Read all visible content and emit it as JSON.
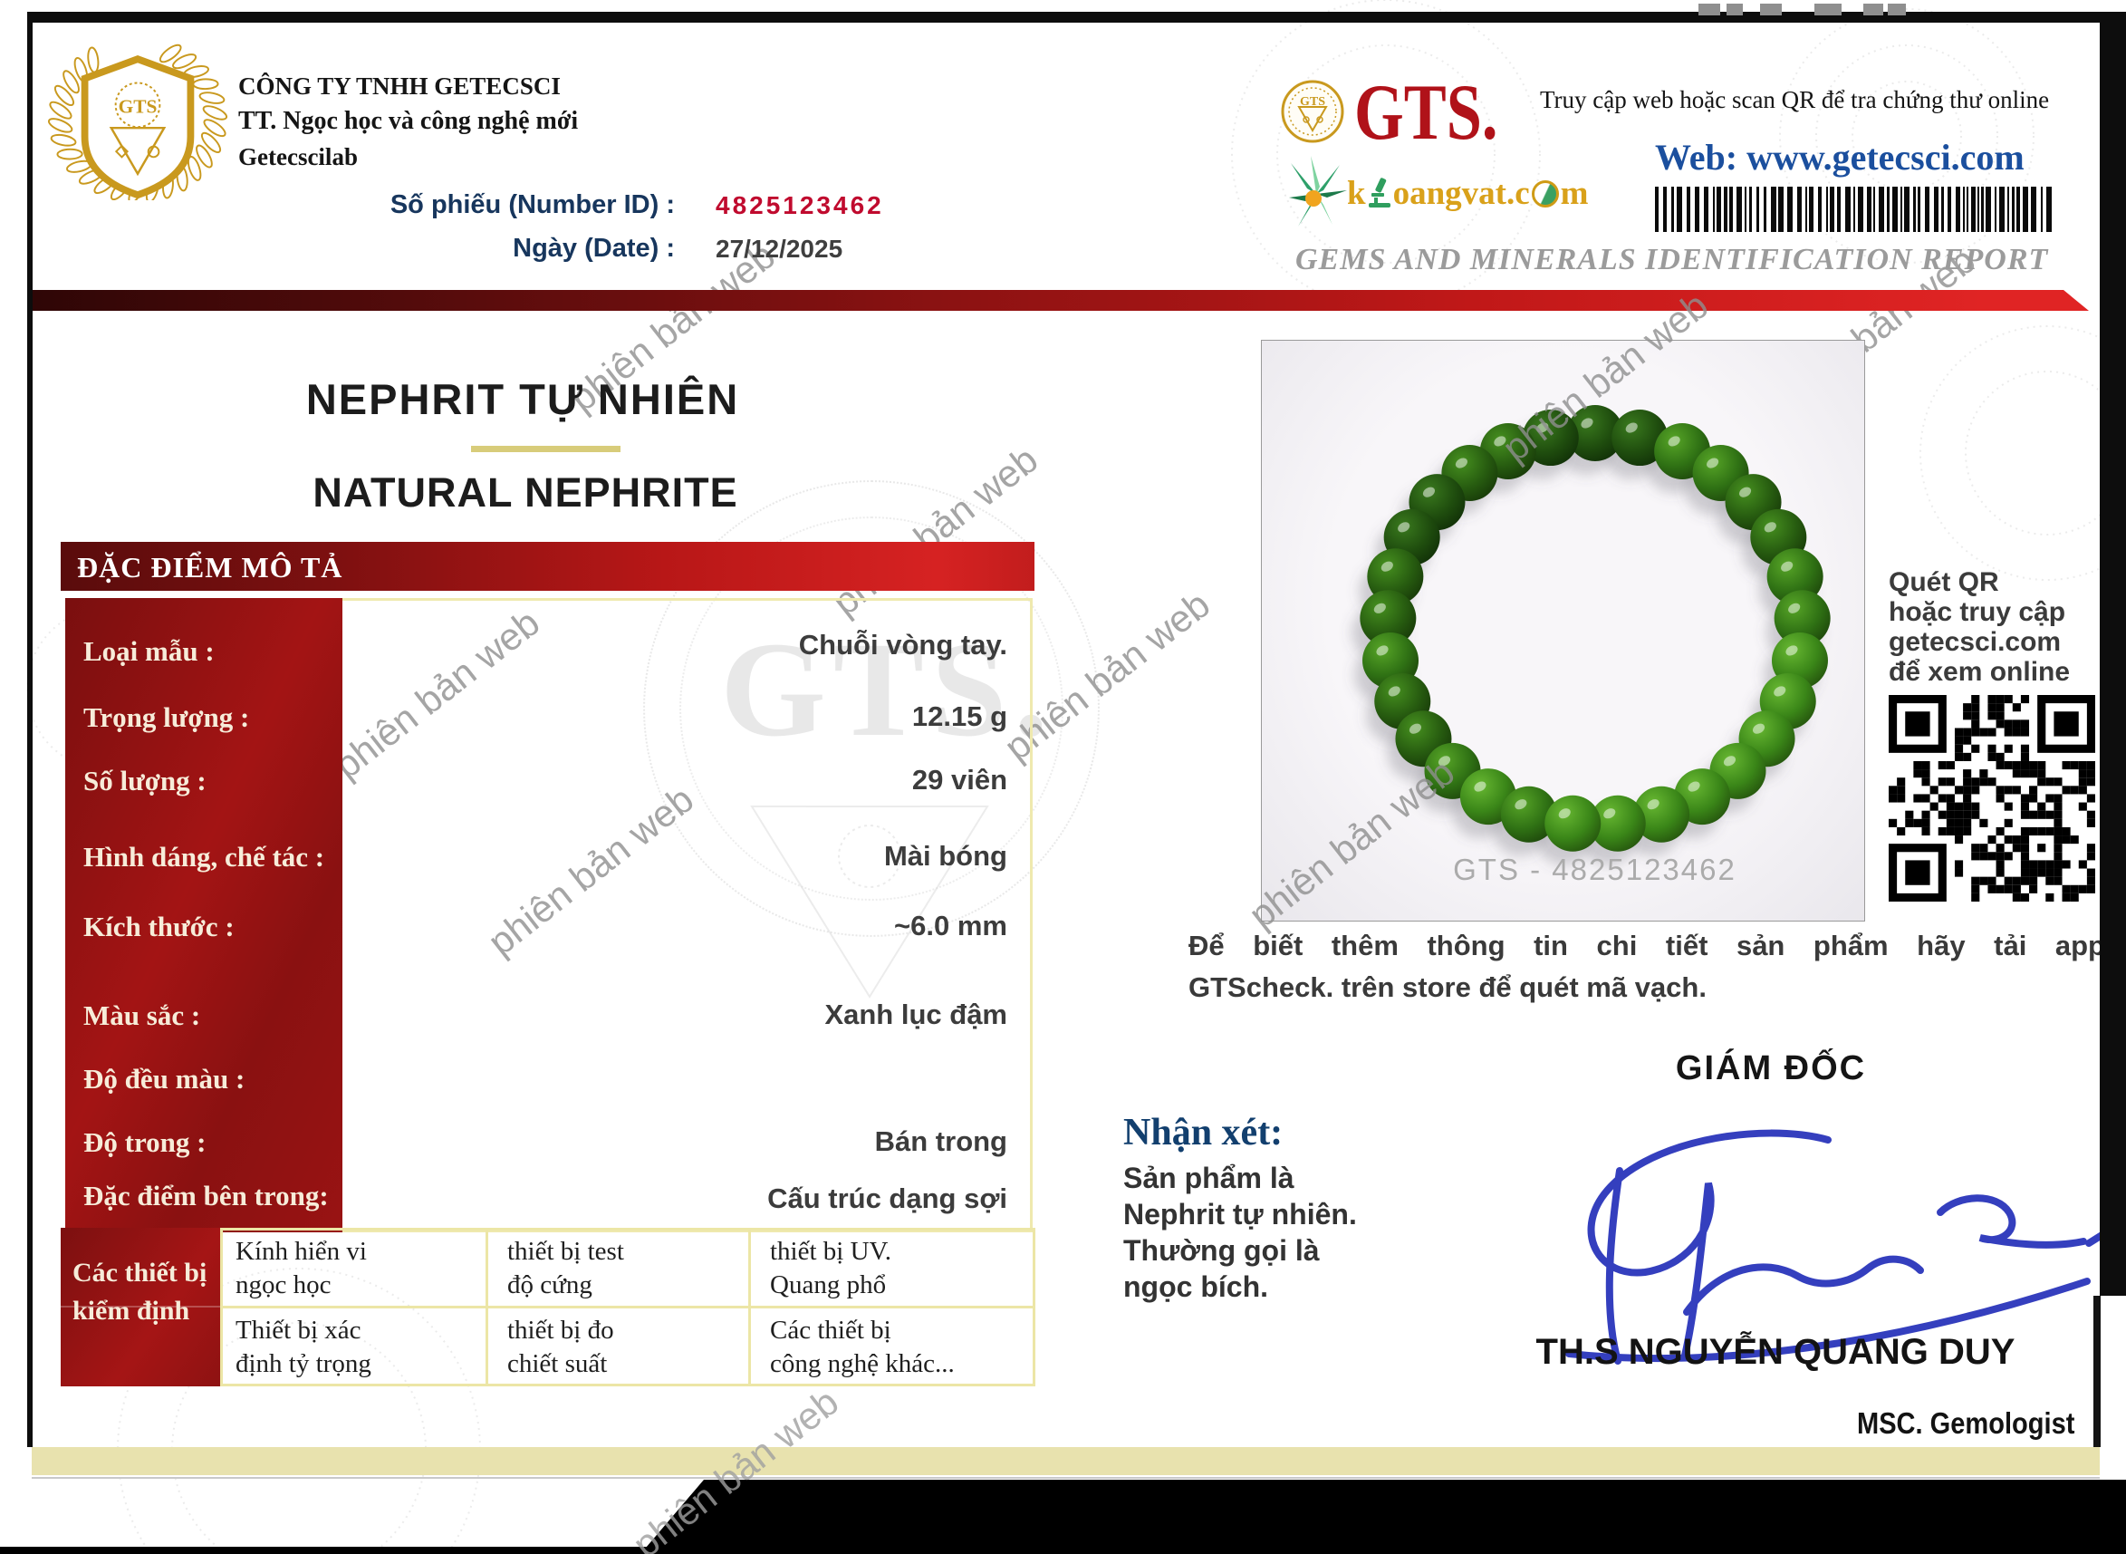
{
  "header": {
    "company_lines": [
      "CÔNG TY  TNHH GETECSCI",
      "TT. Ngọc học và công nghệ mới",
      "Getecscilab"
    ],
    "number_label": "Số phiếu (Number ID) :",
    "number_value": "4825123462",
    "date_label": "Ngày (Date) :",
    "date_value": "27/12/2025",
    "gts_wordmark": "GTS.",
    "emblem_text": "GTS",
    "access_note": "Truy cập web hoặc scan QR để tra chứng thư online",
    "web": "Web: www.getecsci.com",
    "khoangvat": {
      "prefix": "k",
      "middle": "oangvat.c",
      "end": "m"
    },
    "report_title": "GEMS AND MINERALS IDENTIFICATION REPORT"
  },
  "title": {
    "primary": "NEPHRIT TỰ NHIÊN",
    "secondary": "NATURAL NEPHRITE"
  },
  "section": {
    "header": "ĐẶC ĐIỂM MÔ TẢ"
  },
  "properties": [
    {
      "label": "Loại mẫu :",
      "value": "Chuỗi vòng tay."
    },
    {
      "label": "Trọng lượng :",
      "value": "12.15 g"
    },
    {
      "label": "Số lượng :",
      "value": "29 viên"
    },
    {
      "label": "Hình dáng, chế tác :",
      "value": "Mài bóng"
    },
    {
      "label": "Kích thước :",
      "value": "~6.0 mm"
    },
    {
      "label": "Màu sắc :",
      "value": "Xanh lục đậm"
    },
    {
      "label": "Độ đều màu :",
      "value": ""
    },
    {
      "label": "Độ trong :",
      "value": "Bán trong"
    },
    {
      "label": "Đặc điểm bên trong:",
      "value": "Cấu trúc dạng sợi"
    }
  ],
  "equipment": {
    "header": "Các thiết bị\nkiểm định",
    "cells": [
      [
        "Kính hiển vi\nngọc học",
        "thiết bị test\nđộ cứng",
        "thiết bị  UV.\nQuang phổ"
      ],
      [
        "Thiết bị xác\nđịnh tỷ trọng",
        "thiết bị  đo\nchiết suất",
        "Các thiết bị\ncông nghệ khác..."
      ]
    ]
  },
  "photo": {
    "caption": "GTS - 4825123462",
    "bead_count": 29
  },
  "qr_note_lines": [
    "Quét QR",
    "hoặc truy cập",
    "getecsci.com",
    "để xem online"
  ],
  "app_note": {
    "line1": "Để biết thêm thông tin chi tiết sản phẩm hãy tải app",
    "line2": "GTScheck. trên store để quét mã vạch."
  },
  "remarks": {
    "label": "Nhận xét:",
    "lines": [
      "Sản phẩm là",
      "Nephrit  tự nhiên.",
      "Thường gọi là",
      "ngọc bích."
    ]
  },
  "signature_block": {
    "title": "GIÁM ĐỐC",
    "name": "TH.S NGUYỄN QUANG DUY",
    "credential": "MSC. Gemologist"
  },
  "watermark_text": "phiên bản web",
  "seal_text": "GTS.",
  "colors": {
    "accent_red": "#b01219",
    "banner_dark": "#6b0e0e",
    "banner_bright": "#d62222",
    "navy": "#17365d",
    "number_red": "#c00a2e",
    "gold": "#c9991e",
    "khaki_bar": "#e8e2ae",
    "web_blue": "#1b4f9e",
    "remark_navy": "#123f6e",
    "signature_blue": "#2a35bb",
    "bead_green": "#2a6a14"
  }
}
